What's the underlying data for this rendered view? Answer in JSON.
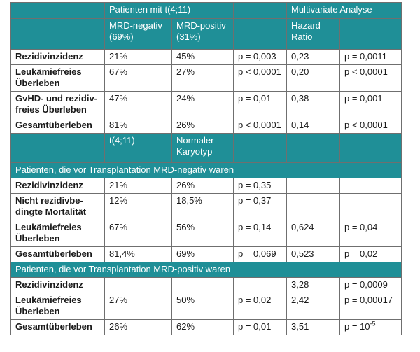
{
  "header": {
    "group_patients": "Patienten mit t(4;11)",
    "group_multivariate": "Multivariate Analyse",
    "col_mrd_neg": "MRD-negativ (69%)",
    "col_mrd_pos": "MRD-positiv (31%)",
    "col_hazard": "Hazard Ratio"
  },
  "rows_block1": [
    {
      "label": "Rezidivinzidenz",
      "neg": "21%",
      "pos": "45%",
      "p": "p = 0,003",
      "hr": "0,23",
      "hp": "p = 0,0011"
    },
    {
      "label": "Leukämiefreies Überleben",
      "neg": "67%",
      "pos": "27%",
      "p": "p < 0,0001",
      "hr": "0,20",
      "hp": "p < 0,0001"
    },
    {
      "label": "GvHD- und rezidiv-freies Überleben",
      "neg": "47%",
      "pos": "24%",
      "p": "p = 0,01",
      "hr": "0,38",
      "hp": "p = 0,001"
    },
    {
      "label": "Gesamtüberleben",
      "neg": "81%",
      "pos": "26%",
      "p": "p < 0,0001",
      "hr": "0,14",
      "hp": "p < 0,0001"
    }
  ],
  "header2": {
    "col_t411": "t(4;11)",
    "col_normal": "Normaler Karyotyp"
  },
  "section_neg": "Patienten, die vor Transplantation MRD-negativ waren",
  "rows_block2": [
    {
      "label": "Rezidivinzidenz",
      "t": "21%",
      "n": "26%",
      "p": "p = 0,35",
      "hr": "",
      "hp": ""
    },
    {
      "label": "Nicht rezidivbe-dingte Mortalität",
      "t": "12%",
      "n": "18,5%",
      "p": "p = 0,37",
      "hr": "",
      "hp": ""
    },
    {
      "label": "Leukämiefreies Überleben",
      "t": "67%",
      "n": "56%",
      "p": "p = 0,14",
      "hr": "0,624",
      "hp": "p = 0,04"
    },
    {
      "label": "Gesamtüberleben",
      "t": "81,4%",
      "n": "69%",
      "p": "p = 0,069",
      "hr": "0,523",
      "hp": "p = 0,02"
    }
  ],
  "section_pos": "Patienten, die vor Transplantation MRD-positiv waren",
  "rows_block3": [
    {
      "label": "Rezidivinzidenz",
      "t": "",
      "n": "",
      "p": "",
      "hr": "3,28",
      "hp": "p = 0,0009"
    },
    {
      "label": "Leukämiefreies Überleben",
      "t": "27%",
      "n": "50%",
      "p": "p = 0,02",
      "hr": "2,42",
      "hp": "p = 0,00017"
    },
    {
      "label": "Gesamtüberleben",
      "t": "26%",
      "n": "62%",
      "p": "p = 0,01",
      "hr": "3,51",
      "hp_base": "p = 10",
      "hp_exp": "-5"
    }
  ]
}
